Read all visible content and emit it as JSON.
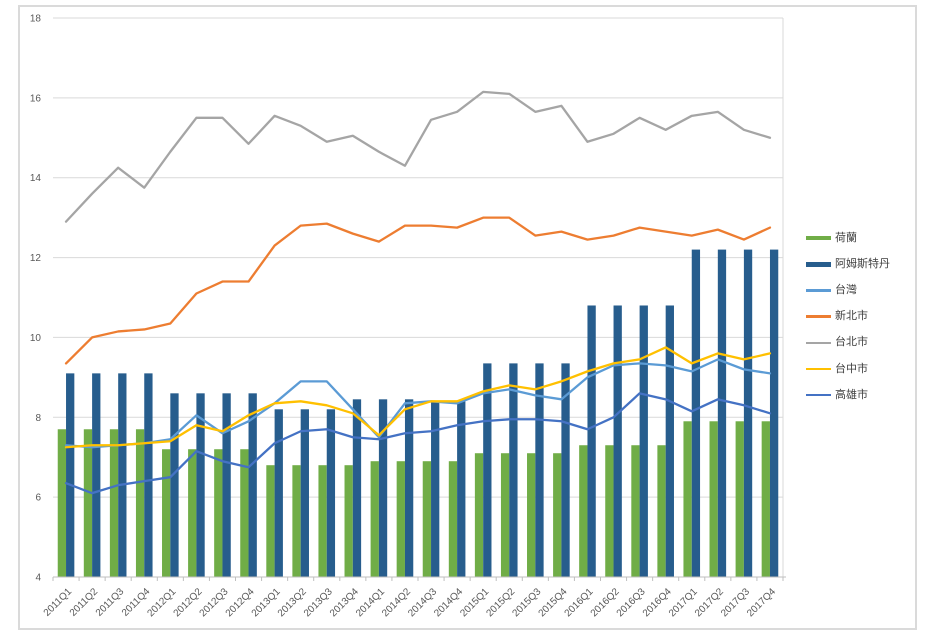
{
  "chart_data": {
    "type": "bar",
    "subtype": "combo-bar-line",
    "title": "",
    "xlabel": "",
    "ylabel": "",
    "grid": true,
    "legend_position": "right",
    "x_axis": {
      "label_rotation": -45
    },
    "y_axis": {
      "min": 4,
      "max": 18,
      "tick_step": 2,
      "ticks": [
        4,
        6,
        8,
        10,
        12,
        14,
        16,
        18
      ]
    },
    "categories": [
      "2011Q1",
      "2011Q2",
      "2011Q3",
      "2011Q4",
      "2012Q1",
      "2012Q2",
      "2012Q3",
      "2012Q4",
      "2013Q1",
      "2013Q2",
      "2013Q3",
      "2013Q4",
      "2014Q1",
      "2014Q2",
      "2014Q3",
      "2014Q4",
      "2015Q1",
      "2015Q2",
      "2015Q3",
      "2015Q4",
      "2016Q1",
      "2016Q2",
      "2016Q3",
      "2016Q4",
      "2017Q1",
      "2017Q2",
      "2017Q3",
      "2017Q4"
    ],
    "series": [
      {
        "name": "荷蘭",
        "type": "bar",
        "color": "#70AD47",
        "values": [
          7.7,
          7.7,
          7.7,
          7.7,
          7.2,
          7.2,
          7.2,
          7.2,
          6.8,
          6.8,
          6.8,
          6.8,
          6.9,
          6.9,
          6.9,
          6.9,
          7.1,
          7.1,
          7.1,
          7.1,
          7.3,
          7.3,
          7.3,
          7.3,
          7.9,
          7.9,
          7.9,
          7.9
        ]
      },
      {
        "name": "阿姆斯特丹",
        "type": "bar",
        "color": "#275D8D",
        "values": [
          9.1,
          9.1,
          9.1,
          9.1,
          8.6,
          8.6,
          8.6,
          8.6,
          8.2,
          8.2,
          8.2,
          8.45,
          8.45,
          8.45,
          8.4,
          8.4,
          9.35,
          9.35,
          9.35,
          9.35,
          10.8,
          10.8,
          10.8,
          10.8,
          12.2,
          12.2,
          12.2,
          12.2
        ]
      },
      {
        "name": "台灣",
        "type": "line",
        "color": "#5B9BD5",
        "values": [
          7.3,
          7.25,
          7.3,
          7.35,
          7.45,
          8.05,
          7.6,
          7.9,
          8.35,
          8.9,
          8.9,
          8.2,
          7.5,
          8.35,
          8.4,
          8.35,
          8.6,
          8.7,
          8.55,
          8.45,
          9.0,
          9.3,
          9.35,
          9.3,
          9.15,
          9.45,
          9.2,
          9.1
        ]
      },
      {
        "name": "新北市",
        "type": "line",
        "color": "#ED7D31",
        "values": [
          9.35,
          10.0,
          10.15,
          10.2,
          10.35,
          11.1,
          11.4,
          11.4,
          12.3,
          12.8,
          12.85,
          12.6,
          12.4,
          12.8,
          12.8,
          12.75,
          13.0,
          13.0,
          12.55,
          12.65,
          12.45,
          12.55,
          12.75,
          12.65,
          12.55,
          12.7,
          12.45,
          12.75
        ]
      },
      {
        "name": "台北市",
        "type": "line",
        "color": "#A5A5A5",
        "values": [
          12.9,
          13.6,
          14.25,
          13.75,
          14.65,
          15.5,
          15.5,
          14.85,
          15.55,
          15.3,
          14.9,
          15.05,
          14.65,
          14.3,
          15.45,
          15.65,
          16.15,
          16.1,
          15.65,
          15.8,
          14.9,
          15.1,
          15.5,
          15.2,
          15.55,
          15.65,
          15.2,
          15.0
        ]
      },
      {
        "name": "台中市",
        "type": "line",
        "color": "#FFC000",
        "values": [
          7.25,
          7.3,
          7.3,
          7.35,
          7.4,
          7.8,
          7.65,
          8.05,
          8.35,
          8.4,
          8.3,
          8.1,
          7.55,
          8.2,
          8.4,
          8.4,
          8.65,
          8.8,
          8.7,
          8.9,
          9.15,
          9.35,
          9.45,
          9.75,
          9.35,
          9.6,
          9.45,
          9.6
        ]
      },
      {
        "name": "高雄市",
        "type": "line",
        "color": "#4472C4",
        "values": [
          6.35,
          6.1,
          6.3,
          6.4,
          6.5,
          7.15,
          6.9,
          6.75,
          7.35,
          7.65,
          7.7,
          7.5,
          7.45,
          7.6,
          7.65,
          7.8,
          7.9,
          7.95,
          7.95,
          7.9,
          7.7,
          8.0,
          8.6,
          8.45,
          8.15,
          8.45,
          8.3,
          8.1
        ]
      }
    ],
    "colors": {
      "gridline": "#D9D9D9",
      "axis_line": "#BFBFBF",
      "axis_label_text": "#595959",
      "legend_text": "#404040",
      "background": "#FFFFFF"
    }
  }
}
